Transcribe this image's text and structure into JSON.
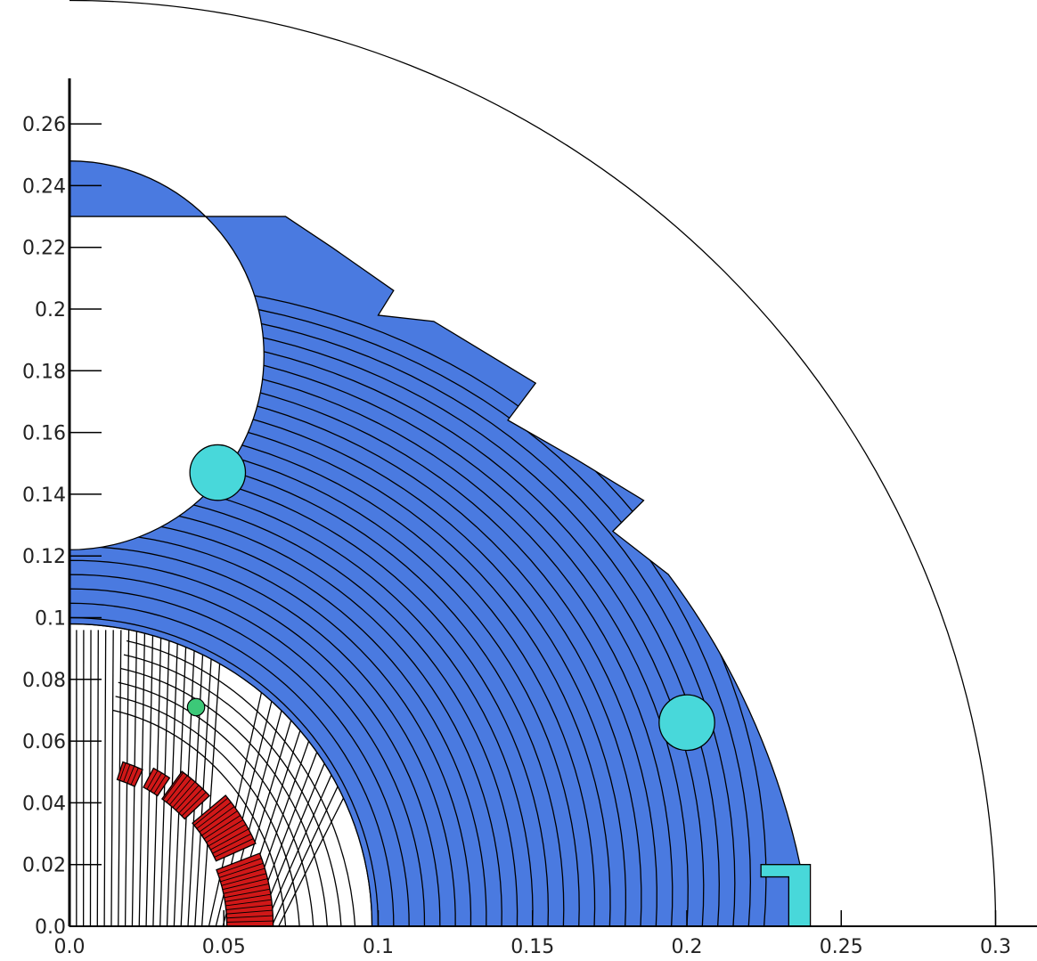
{
  "chart_data": {
    "type": "contour",
    "x_ticks": [
      "0.0",
      "0.05",
      "0.1",
      "0.15",
      "0.2",
      "0.25",
      "0.3"
    ],
    "y_ticks": [
      "0.0",
      "0.02",
      "0.04",
      "0.06",
      "0.08",
      "0.1",
      "0.12",
      "0.14",
      "0.16",
      "0.18",
      "0.2",
      "0.22",
      "0.24",
      "0.26"
    ],
    "xlim": [
      0,
      0.31
    ],
    "ylim": [
      0,
      0.3
    ],
    "regions": {
      "outer_boundary_radius": 0.3,
      "iron_yoke": {
        "color": "#4a7ae0",
        "outer_radius": 0.24,
        "inner_radius": 0.098,
        "top_y": 0.23,
        "outline_points": [
          [
            0,
            0.23
          ],
          [
            0.07,
            0.23
          ],
          [
            0.085,
            0.22
          ],
          [
            0.105,
            0.206
          ],
          [
            0.1,
            0.198
          ],
          [
            0.118,
            0.196
          ],
          [
            0.151,
            0.176
          ],
          [
            0.142,
            0.164
          ],
          [
            0.163,
            0.152
          ],
          [
            0.186,
            0.138
          ],
          [
            0.176,
            0.128
          ],
          [
            0.194,
            0.114
          ]
        ],
        "hole": {
          "center": [
            0,
            0.185
          ],
          "radius": 0.063
        }
      },
      "inner_bore_radius": 0.098,
      "cyan_holes": [
        {
          "center": [
            0.048,
            0.147
          ],
          "radius": 0.009,
          "color": "#48d8da"
        },
        {
          "center": [
            0.2,
            0.066
          ],
          "radius": 0.009,
          "color": "#48d8da"
        }
      ],
      "green_conductor": {
        "center": [
          0.041,
          0.071
        ],
        "radius": 0.0028,
        "color": "#3cc878"
      },
      "cyan_bracket": {
        "color": "#48d8da",
        "points": [
          [
            0.224,
            0.02
          ],
          [
            0.24,
            0.02
          ],
          [
            0.24,
            0.0
          ],
          [
            0.233,
            0.0
          ],
          [
            0.233,
            0.016
          ],
          [
            0.224,
            0.016
          ]
        ]
      },
      "coil_color": "#d01818",
      "coil_blocks": [
        {
          "r_in": 0.051,
          "r_out": 0.066,
          "theta_from": 0,
          "theta_to": 21
        },
        {
          "r_in": 0.052,
          "r_out": 0.066,
          "theta_from": 24,
          "theta_to": 40
        },
        {
          "r_in": 0.051,
          "r_out": 0.062,
          "theta_from": 43,
          "theta_to": 54
        },
        {
          "r_in": 0.051,
          "r_out": 0.058,
          "theta_from": 56,
          "theta_to": 62
        },
        {
          "r_in": 0.05,
          "r_out": 0.056,
          "theta_from": 65,
          "theta_to": 72
        }
      ]
    },
    "contour_radii": [
      0.1,
      0.105,
      0.11,
      0.115,
      0.12,
      0.125,
      0.13,
      0.135,
      0.14,
      0.145,
      0.15,
      0.155,
      0.16,
      0.165,
      0.17,
      0.175,
      0.18,
      0.185,
      0.19,
      0.195,
      0.2,
      0.205,
      0.21,
      0.215,
      0.22,
      0.225
    ],
    "field_line_count": 30
  }
}
